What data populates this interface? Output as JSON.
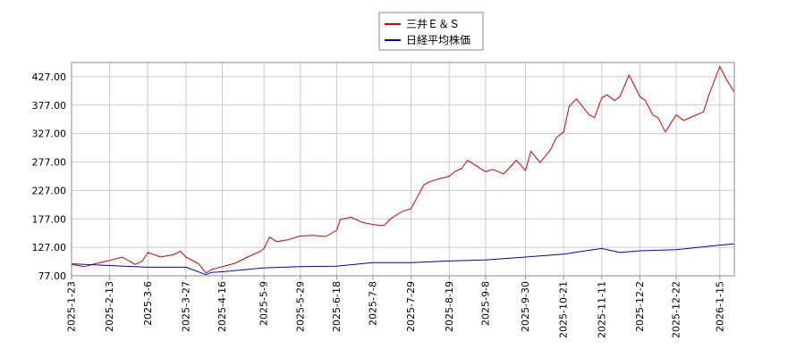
{
  "chart_data": {
    "type": "line",
    "ylim": [
      77,
      452
    ],
    "yticks": [
      "427.00",
      "377.00",
      "327.00",
      "277.00",
      "227.00",
      "177.00",
      "127.00",
      "77.00"
    ],
    "ytick_values": [
      427,
      377,
      327,
      277,
      227,
      177,
      127,
      77
    ],
    "xticks": [
      "2025-1-23",
      "2025-2-13",
      "2025-3-6",
      "2025-3-27",
      "2025-4-16",
      "2025-5-9",
      "2025-5-29",
      "2025-6-18",
      "2025-7-8",
      "2025-7-29",
      "2025-8-19",
      "2025-9-8",
      "2025-9-30",
      "2025-10-21",
      "2025-11-11",
      "2025-12-2",
      "2025-12-22",
      "2026-1-15"
    ],
    "grid": true,
    "legend_position": "top-center",
    "series": [
      {
        "name": "三井Ｅ＆Ｓ",
        "color": "#cc0000",
        "x": [
          "2025-1-23",
          "2025-1-30",
          "2025-2-6",
          "2025-2-13",
          "2025-2-20",
          "2025-2-27",
          "2025-3-3",
          "2025-3-6",
          "2025-3-13",
          "2025-3-20",
          "2025-3-24",
          "2025-3-27",
          "2025-4-3",
          "2025-4-7",
          "2025-4-10",
          "2025-4-16",
          "2025-4-23",
          "2025-4-30",
          "2025-5-7",
          "2025-5-9",
          "2025-5-12",
          "2025-5-16",
          "2025-5-22",
          "2025-5-29",
          "2025-6-5",
          "2025-6-12",
          "2025-6-18",
          "2025-6-20",
          "2025-6-26",
          "2025-7-2",
          "2025-7-8",
          "2025-7-14",
          "2025-7-18",
          "2025-7-24",
          "2025-7-29",
          "2025-8-5",
          "2025-8-8",
          "2025-8-14",
          "2025-8-19",
          "2025-8-22",
          "2025-8-26",
          "2025-8-29",
          "2025-9-2",
          "2025-9-8",
          "2025-9-12",
          "2025-9-18",
          "2025-9-25",
          "2025-9-30",
          "2025-10-3",
          "2025-10-8",
          "2025-10-14",
          "2025-10-17",
          "2025-10-21",
          "2025-10-24",
          "2025-10-28",
          "2025-11-4",
          "2025-11-7",
          "2025-11-11",
          "2025-11-14",
          "2025-11-18",
          "2025-11-21",
          "2025-11-26",
          "2025-12-2",
          "2025-12-5",
          "2025-12-9",
          "2025-12-12",
          "2025-12-16",
          "2025-12-22",
          "2025-12-26",
          "2026-1-6",
          "2026-1-9",
          "2026-1-15",
          "2026-1-19",
          "2026-1-23"
        ],
        "values": [
          97,
          93,
          99,
          104,
          110,
          97,
          103,
          118,
          110,
          114,
          120,
          110,
          98,
          82,
          88,
          93,
          99,
          110,
          120,
          125,
          145,
          137,
          140,
          147,
          148,
          146,
          157,
          176,
          180,
          171,
          167,
          165,
          178,
          190,
          195,
          237,
          242,
          248,
          252,
          260,
          266,
          280,
          272,
          260,
          264,
          256,
          280,
          262,
          296,
          276,
          300,
          320,
          330,
          375,
          388,
          360,
          355,
          390,
          395,
          385,
          392,
          430,
          392,
          385,
          360,
          355,
          330,
          360,
          350,
          365,
          395,
          445,
          420,
          400
        ]
      },
      {
        "name": "日経平均株価",
        "color": "#0000cc",
        "x": [
          "2025-1-23",
          "2025-2-13",
          "2025-3-6",
          "2025-3-27",
          "2025-4-7",
          "2025-4-10",
          "2025-4-16",
          "2025-5-9",
          "2025-5-29",
          "2025-6-18",
          "2025-7-8",
          "2025-7-29",
          "2025-8-19",
          "2025-9-8",
          "2025-9-30",
          "2025-10-21",
          "2025-10-31",
          "2025-11-11",
          "2025-11-21",
          "2025-12-2",
          "2025-12-22",
          "2026-1-15",
          "2026-1-23"
        ],
        "values": [
          98,
          95,
          92,
          92,
          79,
          83,
          84,
          91,
          93,
          94,
          100,
          100,
          103,
          105,
          110,
          115,
          120,
          125,
          118,
          121,
          123,
          131,
          133
        ]
      }
    ]
  }
}
